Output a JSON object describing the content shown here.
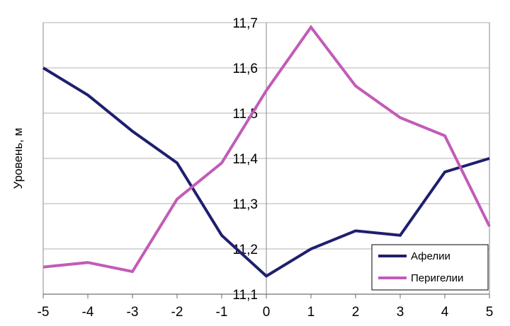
{
  "chart_data": {
    "type": "line",
    "title": "",
    "xlabel": "",
    "ylabel": "Уровень, м",
    "x": [
      -5,
      -4,
      -3,
      -2,
      -1,
      0,
      1,
      2,
      3,
      4,
      5
    ],
    "x_tick_labels": [
      "-5",
      "-4",
      "-3",
      "-2",
      "-1",
      "0",
      "1",
      "2",
      "3",
      "4",
      "5"
    ],
    "xlim": [
      -5,
      5
    ],
    "ylim": [
      11.1,
      11.7
    ],
    "y_ticks": [
      11.1,
      11.2,
      11.3,
      11.4,
      11.5,
      11.6,
      11.7
    ],
    "y_tick_labels": [
      "11,1",
      "11,2",
      "11,3",
      "11,4",
      "11,5",
      "11,6",
      "11,7"
    ],
    "grid": "horizontal",
    "legend_position": "bottom-right",
    "series": [
      {
        "name": "Афелии",
        "color": "#1f1f6e",
        "values": [
          11.6,
          11.54,
          11.46,
          11.39,
          11.23,
          11.14,
          11.2,
          11.24,
          11.23,
          11.37,
          11.4
        ]
      },
      {
        "name": "Перигелии",
        "color": "#c25bb8",
        "values": [
          11.16,
          11.17,
          11.15,
          11.31,
          11.39,
          11.55,
          11.69,
          11.56,
          11.49,
          11.45,
          11.25
        ]
      }
    ]
  }
}
